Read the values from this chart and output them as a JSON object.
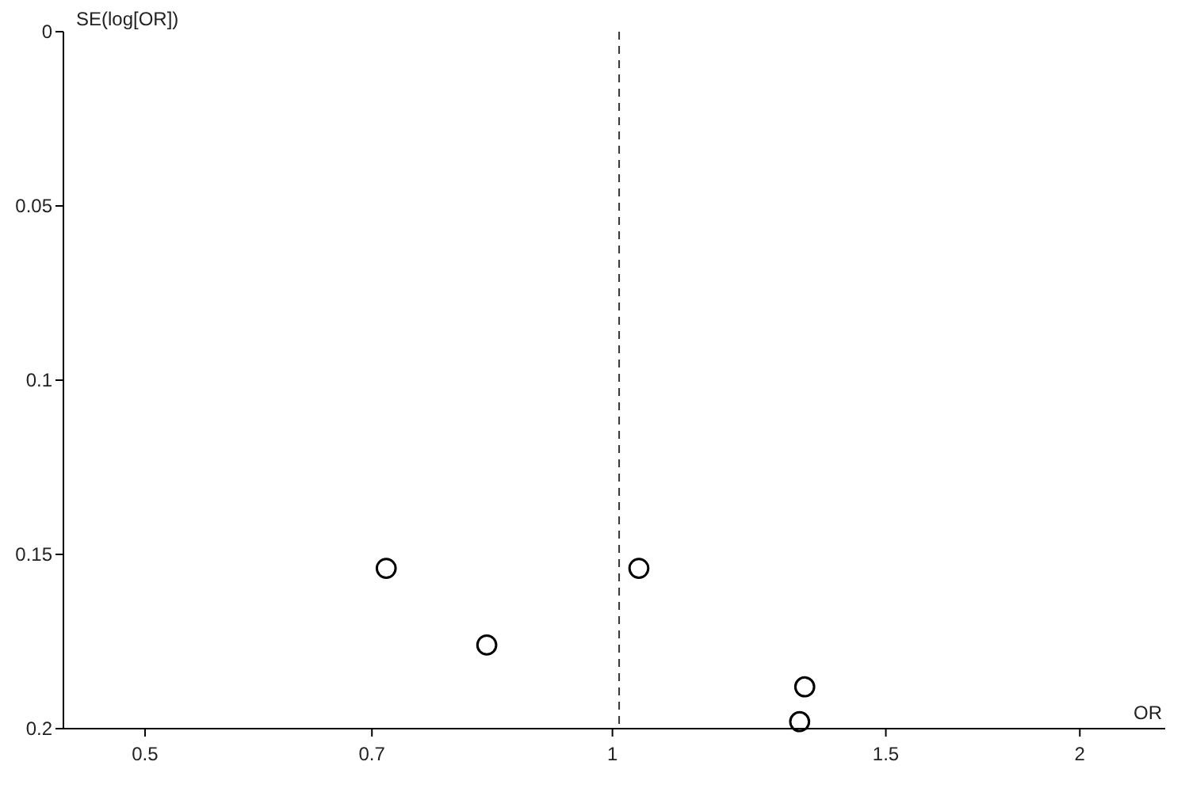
{
  "chart_data": {
    "type": "scatter",
    "xlabel": "OR",
    "ylabel": "SE(log[OR])",
    "log": "x",
    "marker": "circle",
    "x": [
      0.715,
      0.83,
      1.04,
      1.33,
      1.32
    ],
    "series": [
      {
        "color": "#000000",
        "values": [
          0.154,
          0.176,
          0.154,
          0.188,
          0.198
        ]
      }
    ],
    "xlim": [
      0.443,
      2.27
    ],
    "xticks": [
      0.5,
      0.7,
      1,
      1.5,
      2
    ],
    "ylim": [
      0.2,
      0
    ],
    "yticks": [
      0,
      0.05,
      0.1,
      0.15,
      0.2
    ],
    "ref_lines": [
      {
        "axis": "x",
        "value": 1.01,
        "line_style": "dashed",
        "color": "#333333"
      }
    ]
  }
}
